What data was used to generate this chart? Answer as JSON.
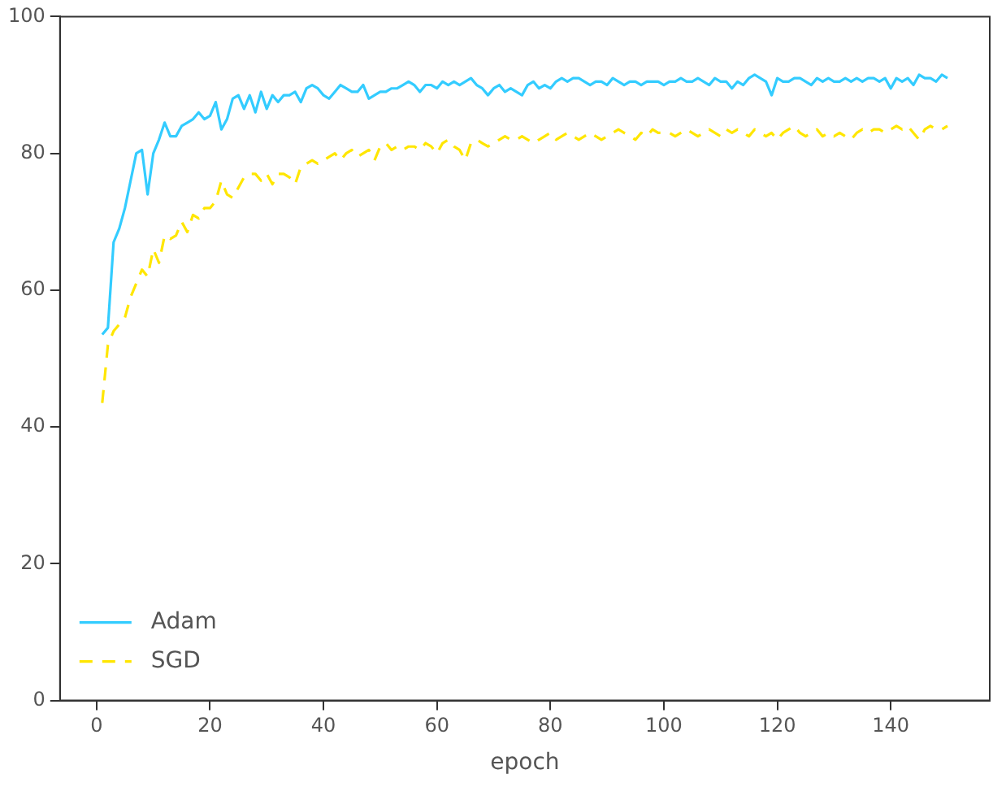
{
  "chart_data": {
    "type": "line",
    "xlabel": "epoch",
    "xlim": [
      -6.45,
      157.45
    ],
    "xticks": [
      0,
      20,
      40,
      60,
      80,
      100,
      120,
      140
    ],
    "ylim": [
      0,
      100
    ],
    "yticks": [
      0,
      20,
      40,
      60,
      80,
      100
    ],
    "grid": false,
    "legend": "bottom left",
    "x": [
      1,
      2,
      3,
      4,
      5,
      6,
      7,
      8,
      9,
      10,
      11,
      12,
      13,
      14,
      15,
      16,
      17,
      18,
      19,
      20,
      21,
      22,
      23,
      24,
      25,
      26,
      27,
      28,
      29,
      30,
      31,
      32,
      33,
      34,
      35,
      36,
      37,
      38,
      39,
      40,
      41,
      42,
      43,
      44,
      45,
      46,
      47,
      48,
      49,
      50,
      51,
      52,
      53,
      54,
      55,
      56,
      57,
      58,
      59,
      60,
      61,
      62,
      63,
      64,
      65,
      66,
      67,
      68,
      69,
      70,
      71,
      72,
      73,
      74,
      75,
      76,
      77,
      78,
      79,
      80,
      81,
      82,
      83,
      84,
      85,
      86,
      87,
      88,
      89,
      90,
      91,
      92,
      93,
      94,
      95,
      96,
      97,
      98,
      99,
      100,
      101,
      102,
      103,
      104,
      105,
      106,
      107,
      108,
      109,
      110,
      111,
      112,
      113,
      114,
      115,
      116,
      117,
      118,
      119,
      120,
      121,
      122,
      123,
      124,
      125,
      126,
      127,
      128,
      129,
      130,
      131,
      132,
      133,
      134,
      135,
      136,
      137,
      138,
      139,
      140,
      141,
      142,
      143,
      144,
      145,
      146,
      147,
      148,
      149,
      150
    ],
    "series": [
      {
        "name": "Adam",
        "color": "#33ccff",
        "line_style": "solid",
        "values": [
          53.5,
          54.5,
          67,
          69,
          72,
          76,
          80,
          80.5,
          74,
          80,
          82,
          84.5,
          82.5,
          82.5,
          84,
          84.5,
          85,
          86,
          85,
          85.5,
          87.5,
          83.5,
          85,
          88,
          88.5,
          86.5,
          88.5,
          86,
          89,
          86.5,
          88.5,
          87.5,
          88.5,
          88.5,
          89,
          87.5,
          89.5,
          90,
          89.5,
          88.5,
          88,
          89,
          90,
          89.5,
          89,
          89,
          90,
          88,
          88.5,
          89,
          89,
          89.5,
          89.5,
          90,
          90.5,
          90,
          89,
          90,
          90,
          89.5,
          90.5,
          90,
          90.5,
          90,
          90.5,
          91,
          90,
          89.5,
          88.5,
          89.5,
          90,
          89,
          89.5,
          89,
          88.5,
          90,
          90.5,
          89.5,
          90,
          89.5,
          90.5,
          91,
          90.5,
          91,
          91,
          90.5,
          90,
          90.5,
          90.5,
          90,
          91,
          90.5,
          90,
          90.5,
          90.5,
          90,
          90.5,
          90.5,
          90.5,
          90,
          90.5,
          90.5,
          91,
          90.5,
          90.5,
          91,
          90.5,
          90,
          91,
          90.5,
          90.5,
          89.5,
          90.5,
          90,
          91,
          91.5,
          91,
          90.5,
          88.5,
          91,
          90.5,
          90.5,
          91,
          91,
          90.5,
          90,
          91,
          90.5,
          91,
          90.5,
          90.5,
          91,
          90.5,
          91,
          90.5,
          91,
          91,
          90.5,
          91,
          89.5,
          91,
          90.5,
          91,
          90,
          91.5,
          91,
          91,
          90.5,
          91.5,
          91
        ]
      },
      {
        "name": "SGD",
        "color": "#ffe600",
        "line_style": "dashed",
        "values": [
          43.5,
          52,
          54,
          55,
          56,
          59,
          61,
          63,
          62,
          66,
          64,
          68,
          67.5,
          68,
          70,
          68.5,
          71,
          70.5,
          72,
          72,
          73,
          76,
          74,
          73.5,
          75,
          76.5,
          77,
          77,
          76,
          77,
          75.5,
          77,
          77,
          76.5,
          75.5,
          78,
          78.5,
          79,
          78.5,
          79,
          79.5,
          80,
          79,
          80,
          80.5,
          79.5,
          80,
          80.5,
          79,
          81,
          81.5,
          80.5,
          81,
          80.5,
          81,
          81,
          80.5,
          81.5,
          81,
          80,
          81.5,
          82,
          81,
          80.5,
          79,
          81.5,
          82,
          81.5,
          81,
          81.5,
          82,
          82.5,
          82,
          82,
          82.5,
          82,
          81.5,
          82,
          82.5,
          83,
          82,
          82.5,
          83,
          82.5,
          82,
          82.5,
          83,
          82.5,
          82,
          82.5,
          83,
          83.5,
          83,
          82.5,
          82,
          83,
          82.5,
          83.5,
          83,
          83,
          83,
          82.5,
          83,
          83.5,
          83,
          82.5,
          83,
          83.5,
          83,
          82.5,
          83.5,
          83,
          83.5,
          83,
          82.5,
          83.5,
          83,
          82.5,
          83,
          82,
          83,
          83.5,
          84,
          83,
          82.5,
          83,
          83.5,
          82.5,
          83,
          82.5,
          83,
          82.5,
          82,
          83,
          83.5,
          83,
          83.5,
          83.5,
          83,
          83.5,
          84,
          83.5,
          84,
          83,
          82,
          83.5,
          84,
          83.5,
          83.5,
          84
        ]
      }
    ]
  }
}
